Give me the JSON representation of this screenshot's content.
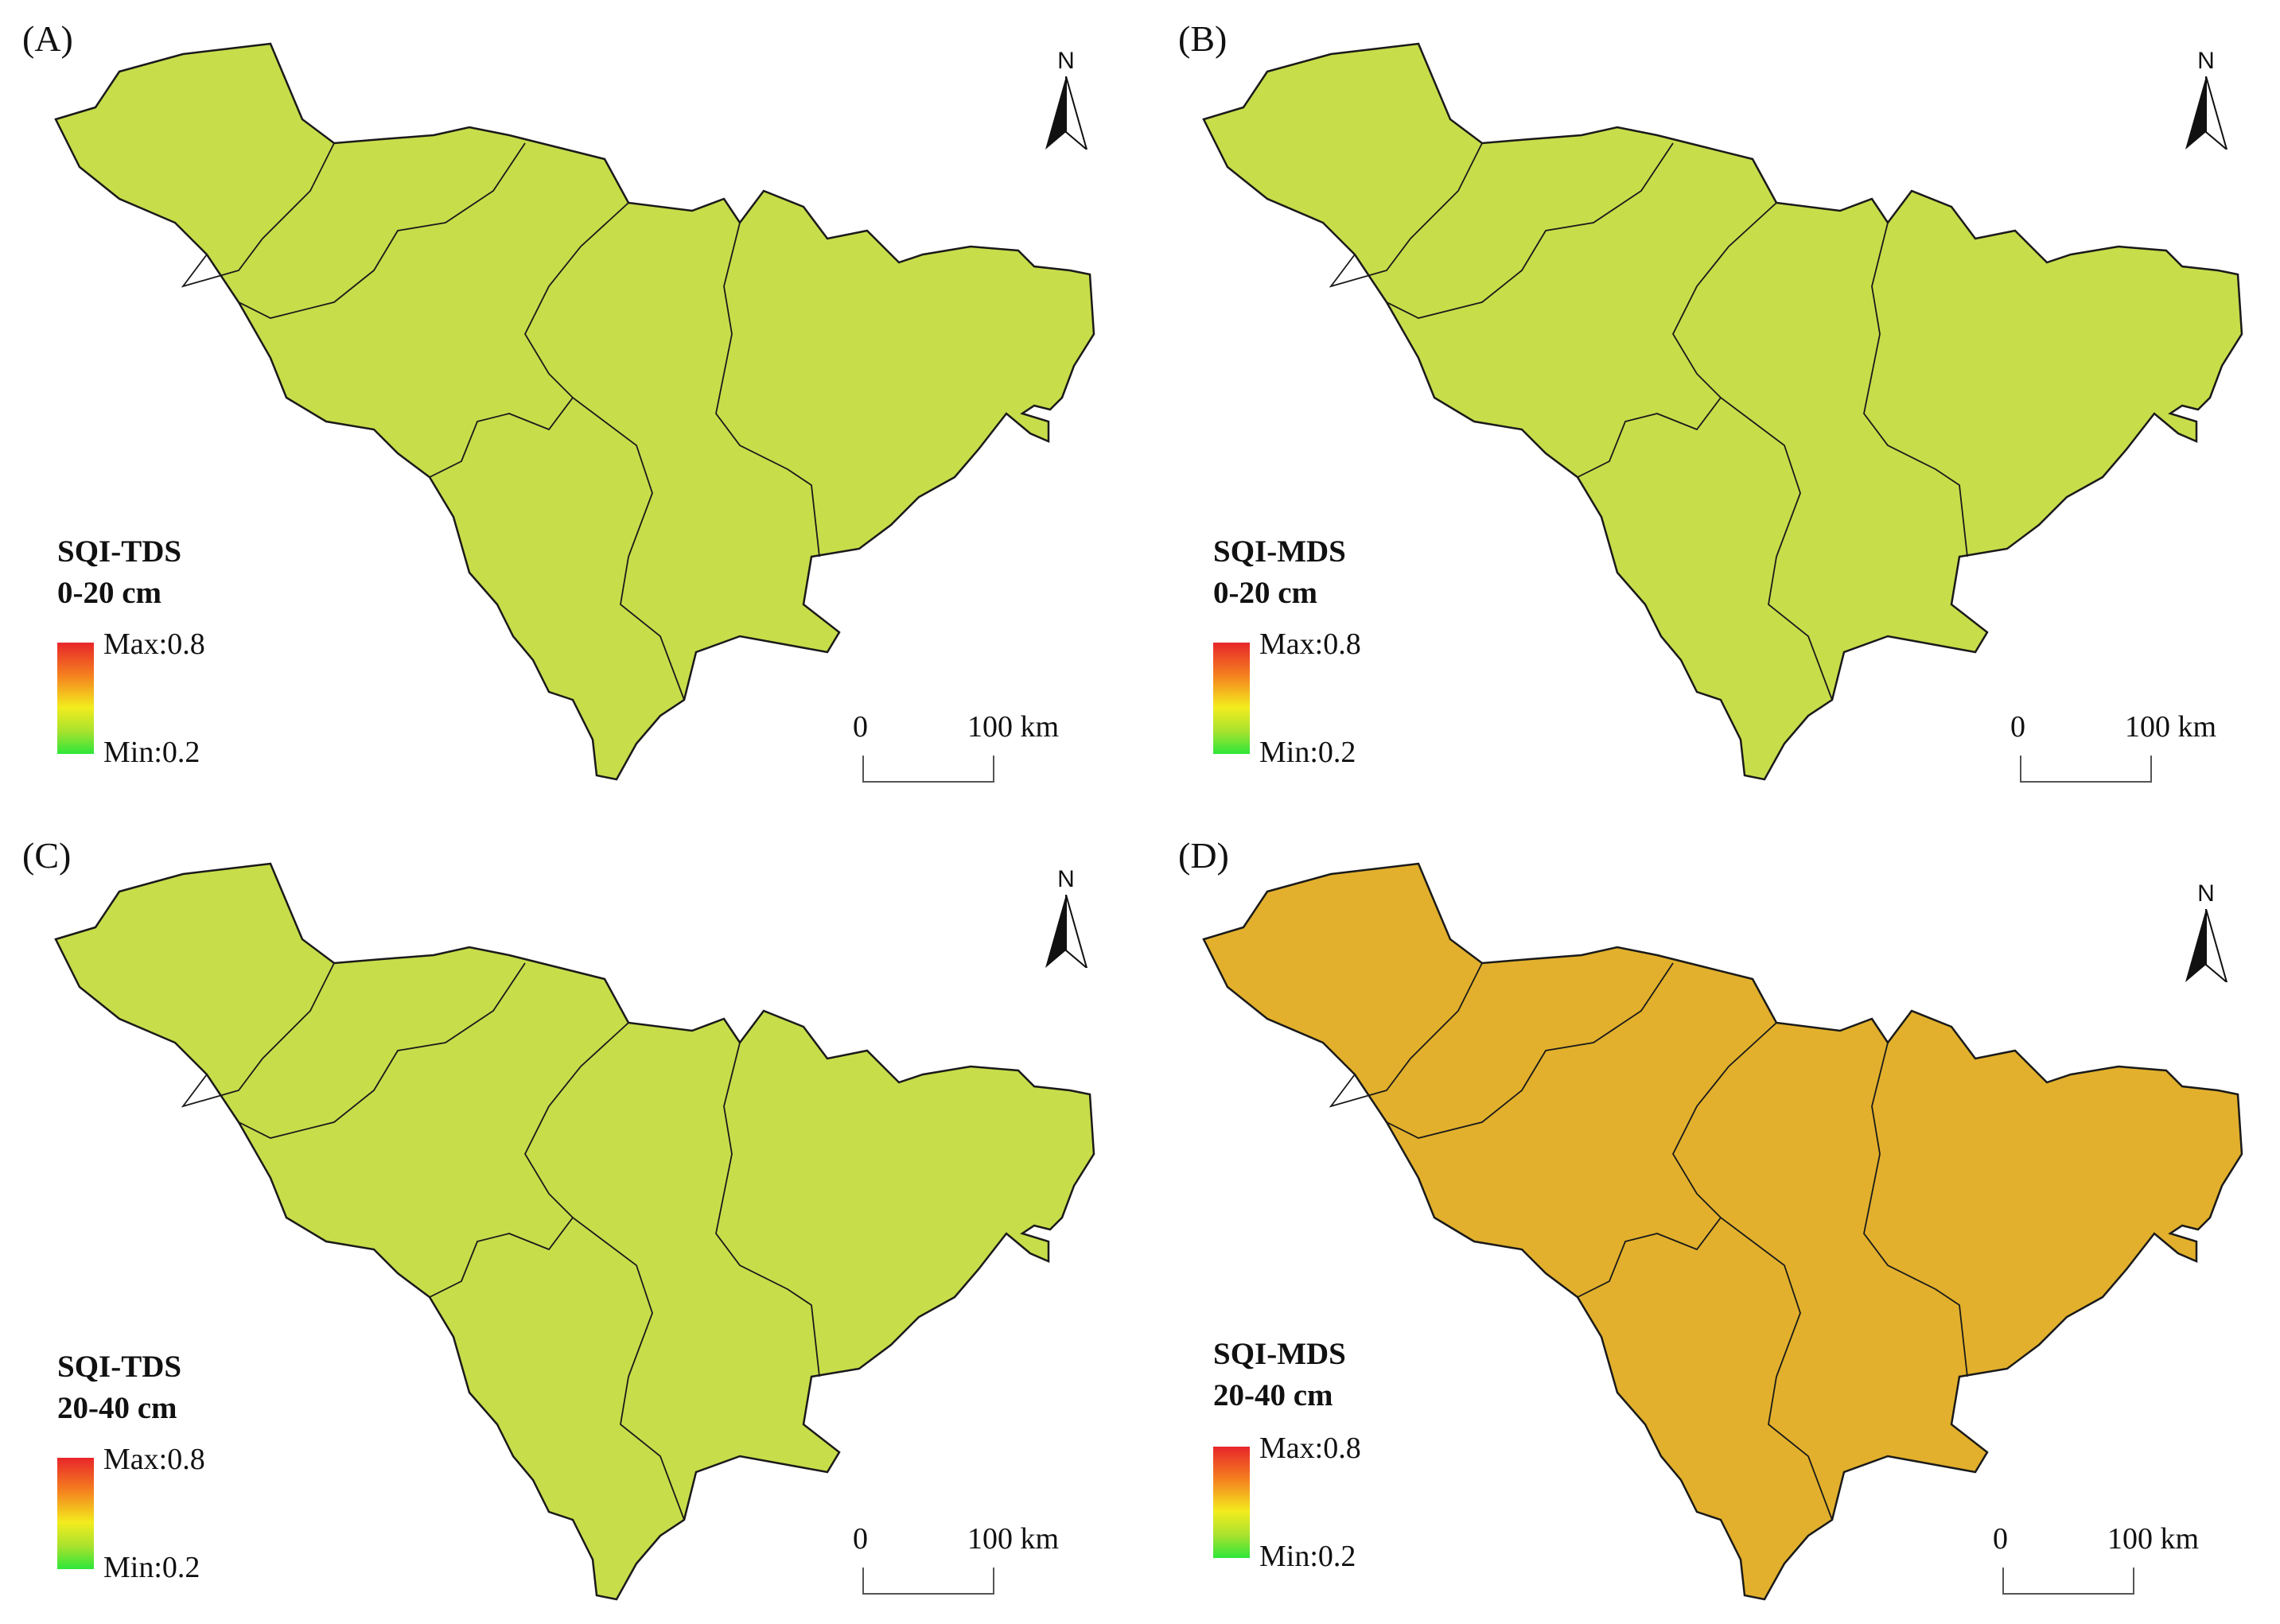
{
  "panels": [
    {
      "id": "A",
      "letter": "(A)",
      "title": "SQI-TDS",
      "depth": "0-20 cm",
      "max_label": "Max:0.8",
      "min_label": "Min:0.2"
    },
    {
      "id": "B",
      "letter": "(B)",
      "title": "SQI-MDS",
      "depth": "0-20 cm",
      "max_label": "Max:0.8",
      "min_label": "Min:0.2"
    },
    {
      "id": "C",
      "letter": "(C)",
      "title": "SQI-TDS",
      "depth": "20-40 cm",
      "max_label": "Max:0.8",
      "min_label": "Min:0.2"
    },
    {
      "id": "D",
      "letter": "(D)",
      "title": "SQI-MDS",
      "depth": "20-40 cm",
      "max_label": "Max:0.8",
      "min_label": "Min:0.2"
    }
  ],
  "north_label": "N",
  "scale": {
    "zero": "0",
    "distance": "100 km"
  },
  "color_ramp": {
    "max_color": "#e8262a",
    "mid_color": "#f3ec1e",
    "min_color": "#2ee63a"
  },
  "icons": {
    "north_arrow": "north-arrow-icon"
  }
}
